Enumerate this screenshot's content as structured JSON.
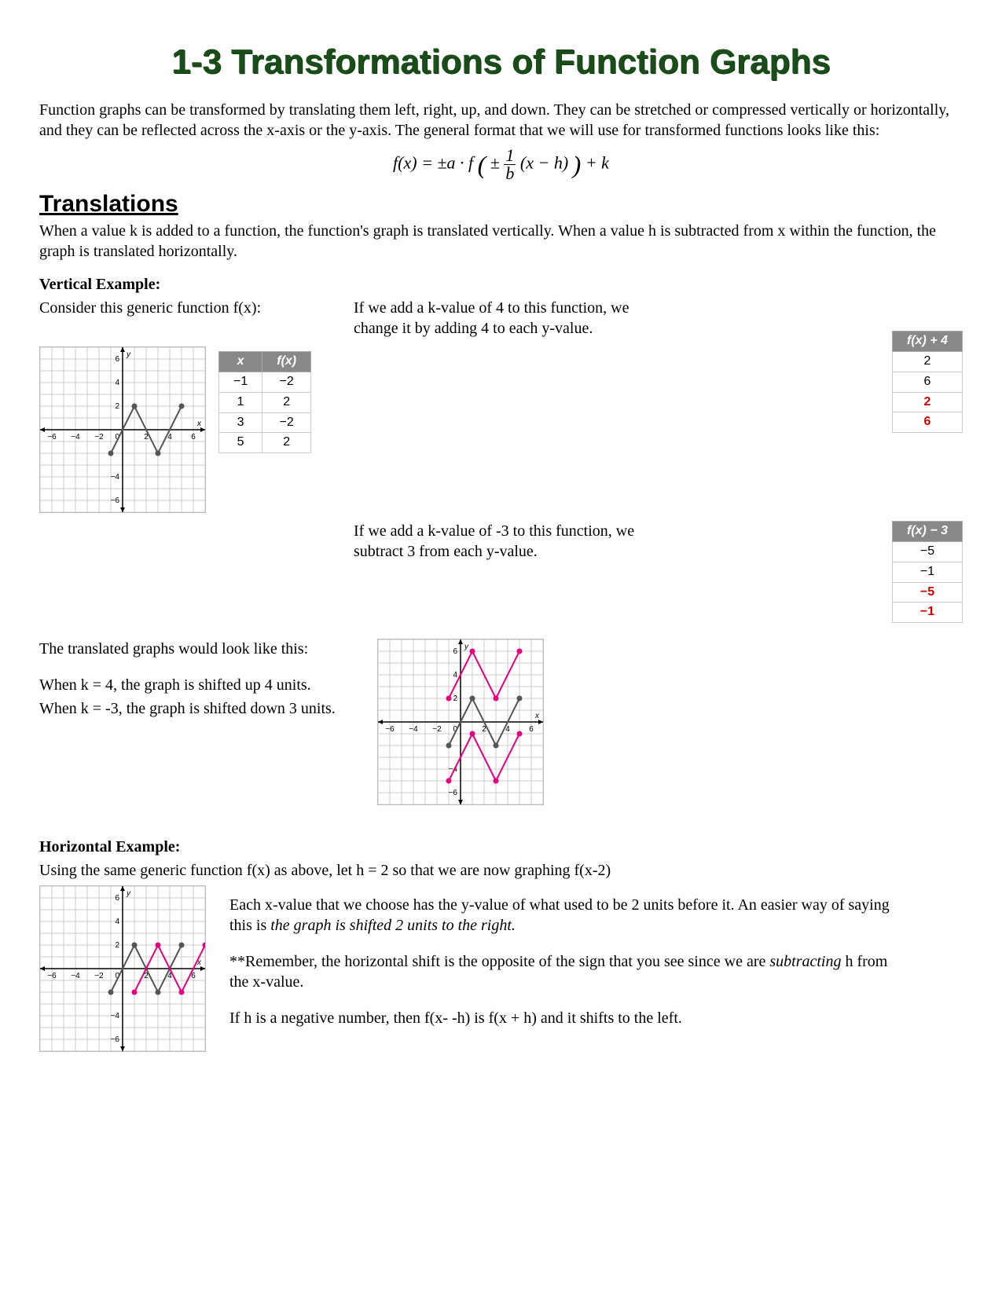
{
  "title": "1-3 Transformations of Function Graphs",
  "intro": "Function graphs can be transformed by translating them left, right, up, and down. They can be stretched or compressed vertically or horizontally, and they can be reflected across the x-axis or the y-axis. The general format that we will use for transformed functions looks like this:",
  "formula": "f(x) = ±a · f ( ± (1/b)(x − h) ) + k",
  "section_translations": "Translations",
  "translations_intro": "When a value k is added to a function, the function's graph is translated vertically.  When a value h is subtracted from x within the function, the graph is translated horizontally.",
  "vertical_heading": "Vertical Example:",
  "vertical_consider": "Consider this generic function f(x):",
  "vertical_k4_text": "If we add a k-value of 4 to this function, we change it by adding 4 to each y-value.",
  "vertical_kneg3_text": "If we add a k-value of -3 to this function, we subtract 3 from each y-value.",
  "translated_graphs_text": "The translated graphs would look like this:",
  "k4_shift": "When k = 4, the graph is shifted up 4 units.",
  "kneg3_shift": "When k = -3, the graph is shifted down 3 units.",
  "horizontal_heading": "Horizontal Example:",
  "horizontal_intro": "Using the same generic function f(x) as above, let h = 2 so that we are now graphing f(x-2)",
  "horizontal_p1a": "Each x-value that we choose has the y-value of what used to be 2 units before it. An easier way of saying this is ",
  "horizontal_p1b": "the graph is shifted 2 units to the right.",
  "horizontal_p2a": "**Remember, the horizontal shift is the opposite of the sign that you see since we are ",
  "horizontal_p2b": "subtracting",
  "horizontal_p2c": " h from the x-value.",
  "horizontal_p3": "If h is a negative number, then f(x- -h) is f(x + h) and it shifts to the left.",
  "table_fx": {
    "headers": [
      "x",
      "f(x)"
    ],
    "rows": [
      [
        "−1",
        "−2"
      ],
      [
        "1",
        "2"
      ],
      [
        "3",
        "−2"
      ],
      [
        "5",
        "2"
      ]
    ]
  },
  "table_fx_plus4": {
    "header": "f(x) + 4",
    "rows": [
      "2",
      "6",
      "2",
      "6"
    ],
    "red_rows": [
      2,
      3
    ]
  },
  "table_fx_minus3": {
    "header": "f(x) − 3",
    "rows": [
      "−5",
      "−1",
      "−5",
      "−1"
    ],
    "red_rows": [
      2,
      3
    ]
  },
  "graph": {
    "xlim": [
      -7,
      7
    ],
    "ylim": [
      -7,
      7
    ],
    "grid_color": "#cccccc",
    "axis_color": "#000000",
    "tick_labels_x": [
      -6,
      -4,
      -2,
      2,
      4,
      6
    ],
    "tick_labels_y": [
      -6,
      -4,
      2,
      4,
      6
    ],
    "base_color": "#555555",
    "translated_color": "#e6007e",
    "base_points": [
      [
        -1,
        -2
      ],
      [
        1,
        2
      ],
      [
        3,
        -2
      ],
      [
        5,
        2
      ]
    ],
    "k4_points": [
      [
        -1,
        2
      ],
      [
        1,
        6
      ],
      [
        3,
        2
      ],
      [
        5,
        6
      ]
    ],
    "kneg3_points": [
      [
        -1,
        -5
      ],
      [
        1,
        -1
      ],
      [
        3,
        -5
      ],
      [
        5,
        -1
      ]
    ],
    "h2_points": [
      [
        1,
        -2
      ],
      [
        3,
        2
      ],
      [
        5,
        -2
      ],
      [
        7,
        2
      ]
    ]
  }
}
